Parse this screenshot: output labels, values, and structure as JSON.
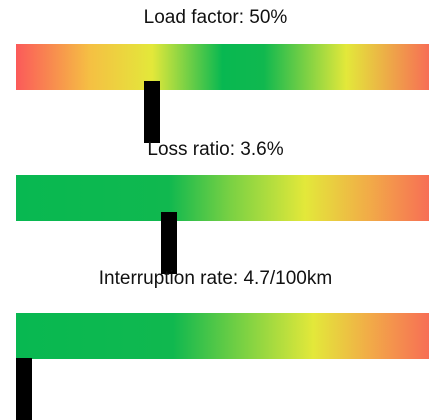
{
  "gauges": [
    {
      "label": "Load factor: 50%",
      "marker_fraction": 0.33,
      "gradient": [
        {
          "pos": 0,
          "color": "#fb5a5a"
        },
        {
          "pos": 0.18,
          "color": "#f5c043"
        },
        {
          "pos": 0.33,
          "color": "#e3e83a"
        },
        {
          "pos": 0.5,
          "color": "#08b851"
        },
        {
          "pos": 0.6,
          "color": "#10b84f"
        },
        {
          "pos": 0.8,
          "color": "#e3e83a"
        },
        {
          "pos": 1,
          "color": "#f76e55"
        }
      ]
    },
    {
      "label": "Loss ratio: 3.6%",
      "marker_fraction": 0.37,
      "gradient": [
        {
          "pos": 0,
          "color": "#08b851"
        },
        {
          "pos": 0.37,
          "color": "#10b84f"
        },
        {
          "pos": 0.52,
          "color": "#7ad143"
        },
        {
          "pos": 0.7,
          "color": "#e3e83a"
        },
        {
          "pos": 0.86,
          "color": "#f2a948"
        },
        {
          "pos": 1,
          "color": "#f76e55"
        }
      ]
    },
    {
      "label": "Interruption rate: 4.7/100km",
      "marker_fraction": 0.02,
      "gradient": [
        {
          "pos": 0,
          "color": "#08b851"
        },
        {
          "pos": 0.38,
          "color": "#10b84f"
        },
        {
          "pos": 0.55,
          "color": "#7ad143"
        },
        {
          "pos": 0.72,
          "color": "#e3e83a"
        },
        {
          "pos": 0.86,
          "color": "#f2a948"
        },
        {
          "pos": 1,
          "color": "#f76e55"
        }
      ]
    }
  ]
}
